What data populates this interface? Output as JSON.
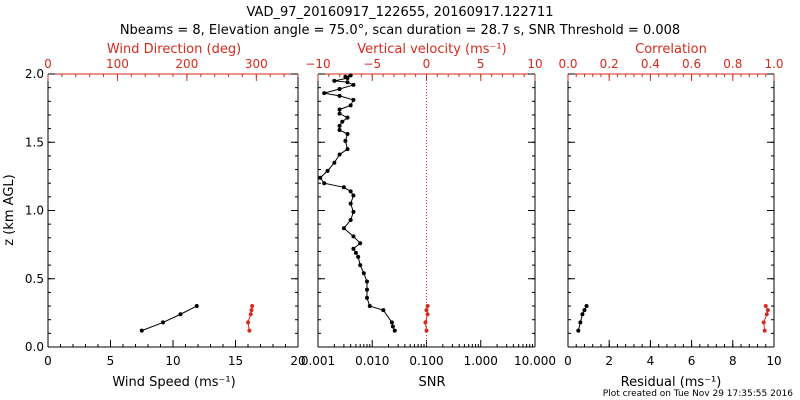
{
  "figure": {
    "title": "VAD_97_20160917_122655, 20160917.122711",
    "subtitle": "Nbeams = 8, Elevation angle = 75.0°, scan duration = 28.7 s, SNR Threshold = 0.008",
    "footer": "Plot created on Tue Nov 29 17:35:55 2016"
  },
  "colors": {
    "black": "#000000",
    "red": "#d62a1e"
  },
  "chart_data": [
    {
      "type": "line",
      "panel": "wind",
      "ylabel": "z (km AGL)",
      "ylim": [
        0,
        2
      ],
      "yticks": [
        "0.0",
        "0.5",
        "1.0",
        "1.5",
        "2.0"
      ],
      "bottom_axis": {
        "label": "Wind Speed (ms⁻¹)",
        "range": [
          0,
          20
        ],
        "ticks": [
          "0",
          "5",
          "10",
          "15",
          "20"
        ]
      },
      "top_axis": {
        "label": "Wind Direction (deg)",
        "range": [
          0,
          360
        ],
        "ticks": [
          "0",
          "100",
          "200",
          "300"
        ]
      },
      "series": [
        {
          "name": "Wind Speed",
          "axis": "bottom",
          "color": "black",
          "x": [
            7.5,
            9.2,
            10.6,
            11.9
          ],
          "y": [
            0.12,
            0.18,
            0.24,
            0.3
          ]
        },
        {
          "name": "Wind Direction",
          "axis": "top",
          "color": "red",
          "x": [
            290,
            288,
            292,
            293,
            294
          ],
          "y": [
            0.12,
            0.18,
            0.24,
            0.27,
            0.3
          ]
        }
      ]
    },
    {
      "type": "line",
      "panel": "snr",
      "bottom_axis": {
        "label": "SNR",
        "scale": "log",
        "range": [
          0.001,
          10
        ],
        "ticks": [
          "0.001",
          "0.010",
          "0.100",
          "1.000",
          "10.000"
        ]
      },
      "top_axis": {
        "label": "Vertical velocity (ms⁻¹)",
        "range": [
          -10,
          10
        ],
        "ticks": [
          "−10",
          "−5",
          "0",
          "5",
          "10"
        ]
      },
      "reference_line": {
        "axis": "top",
        "value": 0,
        "style": "dotted",
        "color": "red"
      },
      "series": [
        {
          "name": "SNR",
          "axis": "bottom",
          "color": "black",
          "x": [
            0.026,
            0.024,
            0.023,
            0.016,
            0.009,
            0.008,
            0.008,
            0.008,
            0.007,
            0.006,
            0.0055,
            0.005,
            0.0045,
            0.006,
            0.0045,
            0.003,
            0.004,
            0.0045,
            0.004,
            0.0045,
            0.004,
            0.003,
            0.0013,
            0.0011,
            0.0015,
            0.002,
            0.0025,
            0.0035,
            0.0032,
            0.0035,
            0.0025,
            0.0025,
            0.0028,
            0.0035,
            0.0025,
            0.0025,
            0.004,
            0.0045,
            0.0025,
            0.0013,
            0.0025,
            0.0045,
            0.0035,
            0.002,
            0.0035,
            0.0032,
            0.004
          ],
          "y": [
            0.12,
            0.15,
            0.18,
            0.27,
            0.3,
            0.36,
            0.42,
            0.48,
            0.54,
            0.6,
            0.66,
            0.69,
            0.72,
            0.76,
            0.81,
            0.87,
            0.93,
            0.99,
            1.05,
            1.11,
            1.14,
            1.17,
            1.2,
            1.24,
            1.29,
            1.35,
            1.41,
            1.45,
            1.51,
            1.56,
            1.59,
            1.62,
            1.65,
            1.68,
            1.71,
            1.74,
            1.77,
            1.81,
            1.84,
            1.86,
            1.89,
            1.92,
            1.94,
            1.95,
            1.97,
            1.98,
            1.99
          ]
        },
        {
          "name": "Vertical velocity",
          "axis": "top",
          "color": "red",
          "x": [
            0.0,
            -0.1,
            0.1,
            0.0,
            0.1
          ],
          "y": [
            0.12,
            0.18,
            0.24,
            0.27,
            0.3
          ]
        }
      ]
    },
    {
      "type": "line",
      "panel": "residual",
      "bottom_axis": {
        "label": "Residual (ms⁻¹)",
        "range": [
          0,
          10
        ],
        "ticks": [
          "0",
          "2",
          "4",
          "6",
          "8",
          "10"
        ]
      },
      "top_axis": {
        "label": "Correlation",
        "range": [
          0,
          1
        ],
        "ticks": [
          "0.0",
          "0.2",
          "0.4",
          "0.6",
          "0.8",
          "1.0"
        ]
      },
      "series": [
        {
          "name": "Residual",
          "axis": "bottom",
          "color": "black",
          "x": [
            0.5,
            0.6,
            0.7,
            0.8,
            0.9
          ],
          "y": [
            0.12,
            0.18,
            0.24,
            0.27,
            0.3
          ]
        },
        {
          "name": "Correlation",
          "axis": "top",
          "color": "red",
          "x": [
            0.955,
            0.95,
            0.965,
            0.97,
            0.96
          ],
          "y": [
            0.12,
            0.18,
            0.24,
            0.27,
            0.3
          ]
        }
      ]
    }
  ]
}
